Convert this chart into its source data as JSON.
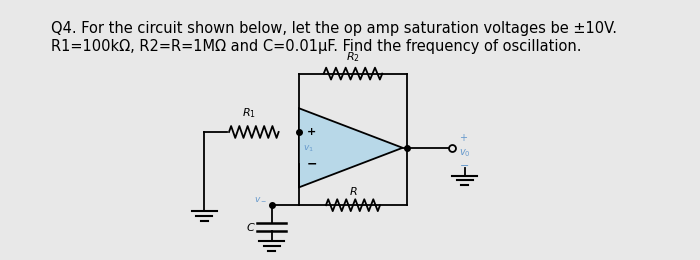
{
  "title_line1": "Q4. For the circuit shown below, let the op amp saturation voltages be ±10V.",
  "title_line2": "R1=100kΩ, R2=R=1MΩ and C=0.01μF. Find the frequency of oscillation.",
  "bg_color": "#e8e8e8",
  "text_color": "#000000",
  "circuit_color": "#000000",
  "opamp_fill": "#b8d8e8",
  "title_fontsize": 10.5,
  "fig_width": 7.0,
  "fig_height": 2.6,
  "dpi": 100,
  "lw": 1.3
}
